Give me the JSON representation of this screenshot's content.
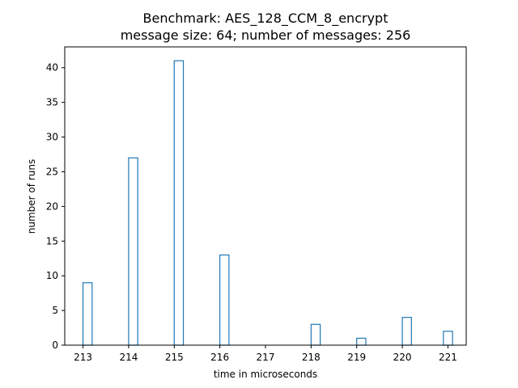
{
  "chart_data": {
    "type": "bar",
    "title": "Benchmark: AES_128_CCM_8_encrypt",
    "subtitle": "message size: 64; number of messages: 256",
    "xlabel": "time in microseconds",
    "ylabel": "number of runs",
    "xlim": [
      212.6,
      221.4
    ],
    "ylim": [
      0,
      43
    ],
    "x_ticks": [
      213,
      214,
      215,
      216,
      217,
      218,
      219,
      220,
      221
    ],
    "y_ticks": [
      0,
      5,
      10,
      15,
      20,
      25,
      30,
      35,
      40
    ],
    "bar_width": 0.2,
    "bars": [
      {
        "x": 213.1,
        "value": 9
      },
      {
        "x": 214.1,
        "value": 27
      },
      {
        "x": 215.1,
        "value": 41
      },
      {
        "x": 216.1,
        "value": 13
      },
      {
        "x": 218.1,
        "value": 3
      },
      {
        "x": 219.1,
        "value": 1
      },
      {
        "x": 220.1,
        "value": 4
      },
      {
        "x": 221.0,
        "value": 2
      }
    ],
    "bar_style": "unfilled outline",
    "bar_color": "#1f77b4",
    "grid": false,
    "legend": "none"
  }
}
